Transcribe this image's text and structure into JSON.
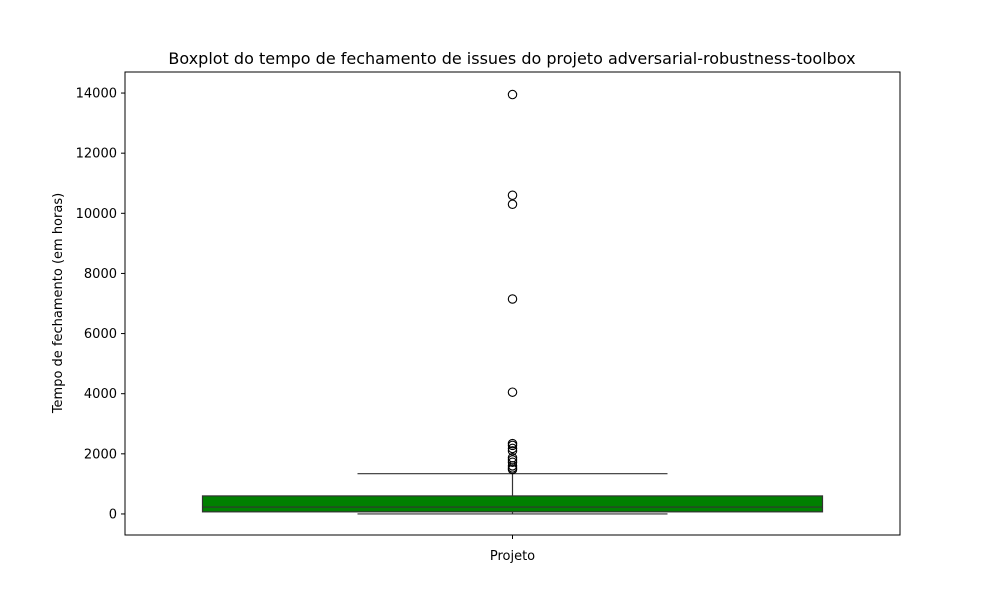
{
  "chart_data": {
    "type": "boxplot",
    "title": "Boxplot do tempo de fechamento de issues do projeto adversarial-robustness-toolbox",
    "xlabel": "",
    "ylabel": "Tempo de fechamento (em horas)",
    "categories": [
      "Projeto"
    ],
    "ylim": [
      -700,
      14700
    ],
    "yticks": [
      0,
      2000,
      4000,
      6000,
      8000,
      10000,
      12000,
      14000
    ],
    "grid": false,
    "box_color": "#008000",
    "series": [
      {
        "category": "Projeto",
        "whisker_low": 0,
        "q1": 70,
        "median": 230,
        "q3": 600,
        "whisker_high": 1340,
        "outliers": [
          1480,
          1530,
          1600,
          1720,
          1800,
          1870,
          2100,
          2180,
          2280,
          2340,
          4050,
          7150,
          10300,
          10600,
          13950
        ]
      }
    ]
  }
}
